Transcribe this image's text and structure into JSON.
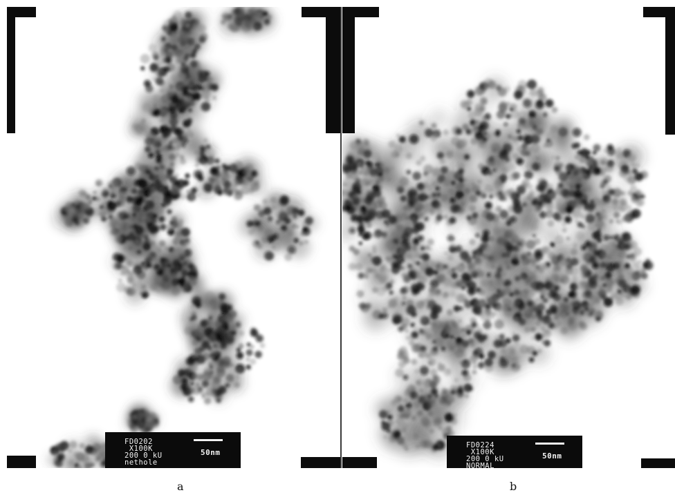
{
  "panel_a": {
    "caption": "a",
    "info_lines": [
      "FD0202",
      " X100K",
      "200 0 kU",
      "nethole"
    ],
    "scale_label": "50nm"
  },
  "panel_b": {
    "caption": "b",
    "info_lines": [
      "FD0224",
      " X100K",
      "200 0 kU",
      "NORMAL"
    ],
    "scale_label": "50nm"
  }
}
